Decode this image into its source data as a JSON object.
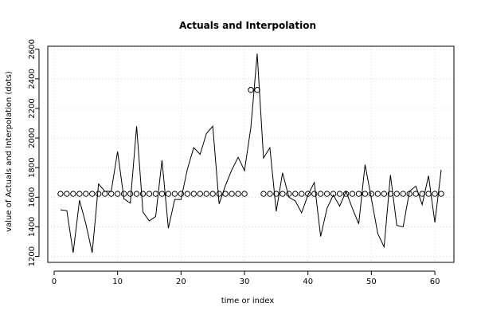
{
  "chart_data": {
    "type": "line",
    "title": "Actuals and Interpolation",
    "xlabel": "time or index",
    "ylabel": "value of Actuals and Interpolation (dots)",
    "xlim": [
      -1,
      63
    ],
    "ylim": [
      1160,
      2620
    ],
    "xticks": [
      0,
      10,
      20,
      30,
      40,
      50,
      60
    ],
    "yticks": [
      1200,
      1400,
      1600,
      1800,
      2000,
      2200,
      2400,
      2600
    ],
    "grid": true,
    "series": [
      {
        "style": "line",
        "x": [
          1,
          2,
          3,
          4,
          5,
          6,
          7,
          8,
          9,
          10,
          11,
          12,
          13,
          14,
          15,
          16,
          17,
          18,
          19,
          20,
          21,
          22,
          23,
          24,
          25,
          26,
          27,
          28,
          29,
          30,
          31,
          32,
          33,
          34,
          35,
          36,
          37,
          38,
          39,
          40,
          41,
          42,
          43,
          44,
          45,
          46,
          47,
          48,
          49,
          50,
          51,
          52,
          53,
          54,
          55,
          56,
          57,
          58,
          59,
          60,
          61
        ],
        "y": [
          1515,
          1510,
          1225,
          1580,
          1420,
          1225,
          1690,
          1640,
          1640,
          1910,
          1590,
          1560,
          2080,
          1500,
          1440,
          1470,
          1850,
          1390,
          1585,
          1585,
          1790,
          1935,
          1890,
          2030,
          2080,
          1555,
          1680,
          1785,
          1870,
          1780,
          2070,
          2570,
          1865,
          1935,
          1505,
          1765,
          1600,
          1575,
          1495,
          1615,
          1700,
          1335,
          1525,
          1615,
          1540,
          1640,
          1525,
          1420,
          1820,
          1590,
          1355,
          1265,
          1750,
          1410,
          1400,
          1640,
          1675,
          1550,
          1745,
          1430,
          1785
        ]
      },
      {
        "style": "dots",
        "x": [
          1,
          2,
          3,
          4,
          5,
          6,
          7,
          8,
          9,
          10,
          11,
          12,
          13,
          14,
          15,
          16,
          17,
          18,
          19,
          20,
          21,
          22,
          23,
          24,
          25,
          26,
          27,
          28,
          29,
          30,
          31,
          32,
          33,
          34,
          35,
          36,
          37,
          38,
          39,
          40,
          41,
          42,
          43,
          44,
          45,
          46,
          47,
          48,
          49,
          50,
          51,
          52,
          53,
          54,
          55,
          56,
          57,
          58,
          59,
          60,
          61
        ],
        "y": [
          1623,
          1623,
          1623,
          1623,
          1623,
          1623,
          1623,
          1623,
          1623,
          1623,
          1623,
          1623,
          1623,
          1623,
          1623,
          1623,
          1623,
          1623,
          1623,
          1623,
          1623,
          1623,
          1623,
          1623,
          1623,
          1623,
          1623,
          1623,
          1623,
          1623,
          2325,
          2325,
          1623,
          1623,
          1623,
          1623,
          1623,
          1623,
          1623,
          1623,
          1623,
          1623,
          1623,
          1623,
          1623,
          1623,
          1623,
          1623,
          1623,
          1623,
          1623,
          1623,
          1623,
          1623,
          1623,
          1623,
          1623,
          1623,
          1623,
          1623,
          1623
        ]
      }
    ]
  }
}
